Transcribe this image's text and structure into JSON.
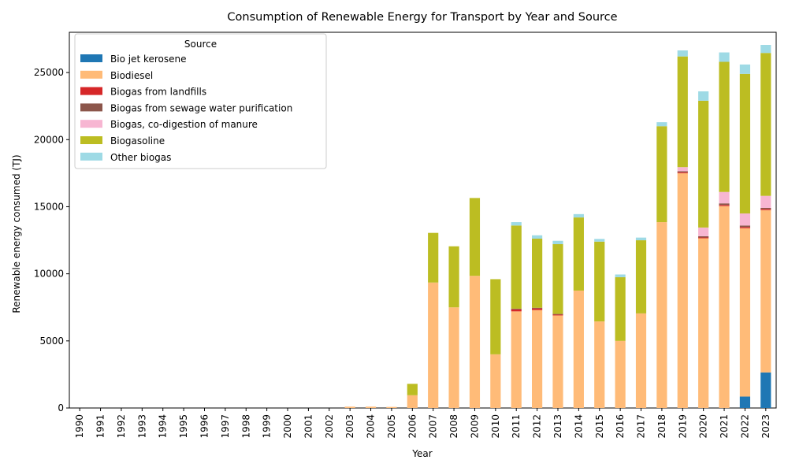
{
  "chart_data": {
    "type": "bar",
    "stacked": true,
    "title": "Consumption of Renewable Energy for Transport by Year and Source",
    "xlabel": "Year",
    "ylabel": "Renewable energy consumed (TJ)",
    "ylim": [
      0,
      28000
    ],
    "yticks": [
      "0",
      "5000",
      "10000",
      "15000",
      "20000",
      "25000"
    ],
    "grid": false,
    "legend": {
      "title": "Source",
      "placement": "top-left"
    },
    "categories": [
      "1990",
      "1991",
      "1992",
      "1993",
      "1994",
      "1995",
      "1996",
      "1997",
      "1998",
      "1999",
      "2000",
      "2001",
      "2002",
      "2003",
      "2004",
      "2005",
      "2006",
      "2007",
      "2008",
      "2009",
      "2010",
      "2011",
      "2012",
      "2013",
      "2014",
      "2015",
      "2016",
      "2017",
      "2018",
      "2019",
      "2020",
      "2021",
      "2022",
      "2023"
    ],
    "series": [
      {
        "name": "Bio jet kerosene",
        "color": "#1f77b4",
        "values": [
          0,
          0,
          0,
          0,
          0,
          0,
          0,
          0,
          0,
          0,
          0,
          0,
          0,
          0,
          0,
          0,
          0,
          0,
          0,
          0,
          0,
          0,
          0,
          0,
          0,
          0,
          0,
          0,
          0,
          0,
          0,
          0,
          850,
          2650
        ]
      },
      {
        "name": "Biodiesel",
        "color": "#ffbb78",
        "values": [
          0,
          0,
          0,
          0,
          0,
          0,
          0,
          0,
          0,
          0,
          0,
          0,
          0,
          100,
          100,
          80,
          950,
          9350,
          7500,
          9850,
          4000,
          7200,
          7300,
          6900,
          8750,
          6450,
          5000,
          7050,
          13850,
          17500,
          12650,
          15050,
          12550,
          12100
        ]
      },
      {
        "name": "Biogas from landfills",
        "color": "#d62728",
        "values": [
          0,
          0,
          0,
          0,
          0,
          0,
          0,
          0,
          0,
          0,
          0,
          0,
          0,
          0,
          0,
          0,
          0,
          0,
          0,
          0,
          0,
          150,
          120,
          60,
          0,
          0,
          0,
          0,
          0,
          70,
          60,
          80,
          80,
          80
        ]
      },
      {
        "name": "Biogas from sewage water purification",
        "color": "#8c564b",
        "values": [
          0,
          0,
          0,
          0,
          0,
          0,
          0,
          0,
          0,
          0,
          0,
          0,
          0,
          0,
          0,
          0,
          0,
          0,
          0,
          0,
          0,
          50,
          50,
          50,
          0,
          0,
          0,
          0,
          0,
          80,
          90,
          120,
          120,
          80
        ]
      },
      {
        "name": "Biogas, co-digestion of manure",
        "color": "#f7b6d2",
        "values": [
          0,
          0,
          0,
          0,
          0,
          0,
          0,
          0,
          0,
          0,
          0,
          0,
          0,
          0,
          0,
          0,
          0,
          0,
          0,
          0,
          0,
          0,
          0,
          0,
          0,
          0,
          0,
          0,
          0,
          300,
          650,
          850,
          900,
          900
        ]
      },
      {
        "name": "Biogasoline",
        "color": "#bcbd22",
        "values": [
          0,
          0,
          0,
          0,
          0,
          0,
          0,
          0,
          0,
          0,
          0,
          0,
          0,
          0,
          0,
          0,
          850,
          3700,
          4550,
          5800,
          5600,
          6200,
          5150,
          5200,
          5450,
          5950,
          4750,
          5450,
          7150,
          8250,
          9450,
          9700,
          10400,
          10650
        ]
      },
      {
        "name": "Other biogas",
        "color": "#9edae5",
        "values": [
          0,
          0,
          0,
          0,
          0,
          0,
          0,
          0,
          0,
          0,
          0,
          0,
          0,
          0,
          0,
          0,
          0,
          0,
          0,
          0,
          0,
          250,
          250,
          250,
          250,
          200,
          200,
          200,
          300,
          450,
          700,
          700,
          700,
          600
        ]
      }
    ]
  }
}
